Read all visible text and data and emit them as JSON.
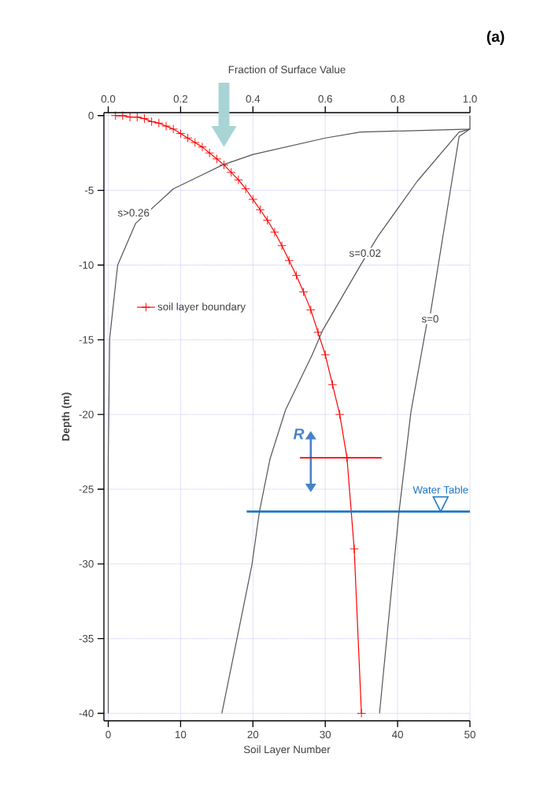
{
  "chart_data": {
    "type": "line",
    "xlabel": "Soil Layer Number",
    "x2label": "Fraction of Surface Value",
    "ylabel": "Depth (m)",
    "annotations": [
      "(a)",
      "R"
    ],
    "xlim": [
      -0.6,
      50
    ],
    "xticks": [
      0,
      10,
      20,
      30,
      40,
      50
    ],
    "x2lim": [
      -0.012,
      1.0
    ],
    "x2ticks": [
      {
        "value": 0,
        "label": "0.0"
      },
      {
        "value": 0.2,
        "label": "0.2"
      },
      {
        "value": 0.4,
        "label": "0.4"
      },
      {
        "value": 0.6,
        "label": "0.6"
      },
      {
        "value": 0.8,
        "label": "0.8"
      },
      {
        "value": 1.0,
        "label": "1.0"
      }
    ],
    "ylim": [
      -40.5,
      0.2
    ],
    "yticks": [
      0,
      -5,
      -10,
      -15,
      -20,
      -25,
      -30,
      -35,
      -40
    ],
    "grid": true,
    "legend": "left",
    "series": [
      {
        "name": "soil layer boundary",
        "color": "#ff0000",
        "marker": "cross",
        "x": [
          1,
          2,
          3,
          4,
          5,
          6,
          7,
          8,
          9,
          10,
          11,
          12,
          13,
          14,
          15,
          16,
          17,
          18,
          19,
          20,
          21,
          22,
          23,
          24,
          25,
          26,
          27,
          28,
          29,
          30,
          31,
          32,
          33,
          34,
          35
        ],
        "values": [
          0,
          0,
          -0.1,
          -0.1,
          -0.2,
          -0.4,
          -0.5,
          -0.7,
          -0.9,
          -1.2,
          -1.5,
          -1.8,
          -2.1,
          -2.5,
          -2.9,
          -3.3,
          -3.8,
          -4.3,
          -4.9,
          -5.6,
          -6.3,
          -7.0,
          -7.8,
          -8.7,
          -9.7,
          -10.7,
          -11.8,
          -13.0,
          -14.5,
          -16.0,
          -18.0,
          -20.0,
          -22.9,
          -29.0,
          -40.0
        ]
      },
      {
        "name": "s>0.26",
        "color": "#555555",
        "axis": "x2",
        "marker": "none",
        "x": [
          1.0,
          1.0,
          0.697,
          0.6,
          0.4,
          0.316,
          0.18,
          0.076,
          0.026,
          0.004,
          0.0,
          0.0
        ],
        "values": [
          0,
          -0.9,
          -1.1,
          -1.5,
          -2.6,
          -3.3,
          -4.9,
          -7.2,
          -10,
          -14.9,
          -23,
          -40
        ]
      },
      {
        "name": "s=0.02",
        "color": "#555555",
        "axis": "x2",
        "marker": "none",
        "x": [
          1.0,
          0.97,
          0.854,
          0.745,
          0.7,
          0.592,
          0.564,
          0.49,
          0.447,
          0.418,
          0.397,
          0.314
        ],
        "values": [
          -0.9,
          -1.1,
          -4.4,
          -8.1,
          -9.9,
          -14.4,
          -16,
          -19.7,
          -23,
          -26.5,
          -30.1,
          -40
        ]
      },
      {
        "name": "s=0",
        "color": "#555555",
        "axis": "x2",
        "marker": "none",
        "x": [
          1.0,
          0.97,
          0.891,
          0.88,
          0.837,
          0.804,
          0.75
        ],
        "values": [
          -0.9,
          -1.4,
          -13.2,
          -14,
          -19.8,
          -26.5,
          -40
        ]
      }
    ],
    "ref_lines": [
      {
        "axis": "y",
        "value": -26.5,
        "label": "Water Table",
        "color": "#1f78c8"
      }
    ]
  }
}
